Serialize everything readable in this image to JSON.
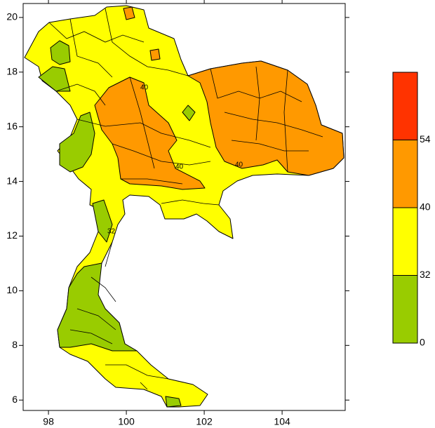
{
  "axes": {
    "xlim": [
      97.35,
      105.62
    ],
    "xticks": [
      98,
      100,
      102,
      104
    ],
    "ylim": [
      5.62,
      20.51
    ],
    "yticks": [
      6,
      8,
      10,
      12,
      14,
      16,
      18,
      20
    ]
  },
  "colorbar": {
    "levels": [
      0,
      32,
      40,
      54
    ],
    "colors": [
      "#99cc00",
      "#ffff00",
      "#ff9900",
      "#ff3300"
    ]
  },
  "contour_labels": [
    "40",
    "40",
    "40",
    "32"
  ]
}
